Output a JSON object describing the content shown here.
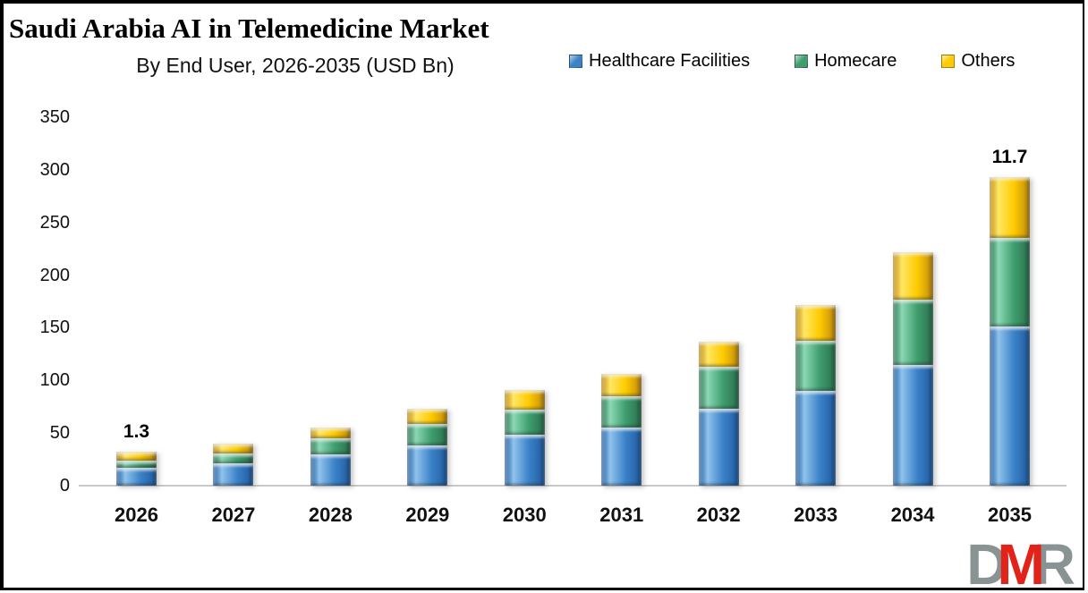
{
  "title": "Saudi Arabia AI in Telemedicine Market",
  "subtitle": "By End User, 2026-2035 (USD Bn)",
  "chart_data": {
    "type": "bar",
    "stacked": true,
    "title": "Saudi Arabia AI in Telemedicine Market",
    "subtitle": "By End User, 2026-2035 (USD Bn)",
    "unit": "USD Bn",
    "categories": [
      "2026",
      "2027",
      "2028",
      "2029",
      "2030",
      "2031",
      "2032",
      "2033",
      "2034",
      "2035"
    ],
    "series": [
      {
        "name": "Healthcare Facilities",
        "color": "#3b82c8",
        "light": "#8fc3ec",
        "dark": "#1f5a9e",
        "values": [
          17,
          21,
          30,
          38,
          48,
          55,
          73,
          90,
          115,
          151
        ]
      },
      {
        "name": "Homecare",
        "color": "#3f9e6e",
        "light": "#8ad8b4",
        "dark": "#2a6e4d",
        "values": [
          7,
          10,
          15,
          21,
          24,
          30,
          40,
          48,
          62,
          84
        ]
      },
      {
        "name": "Others",
        "color": "#ffcb00",
        "light": "#ffe766",
        "dark": "#bf8a10",
        "values": [
          8,
          9,
          10,
          14,
          19,
          21,
          24,
          34,
          45,
          58
        ]
      }
    ],
    "totals": [
      32,
      40,
      55,
      73,
      91,
      106,
      137,
      172,
      222,
      293
    ],
    "annotations": [
      {
        "category": "2026",
        "text": "1.3"
      },
      {
        "category": "2035",
        "text": "11.7"
      }
    ],
    "ylim": [
      0,
      350
    ],
    "yticks": [
      "0",
      "50",
      "100",
      "150",
      "200",
      "250",
      "300",
      "350"
    ],
    "grid": false,
    "legend_position": "top-right"
  },
  "logo": {
    "letters": [
      {
        "char": "D",
        "color": "#8a9394"
      },
      {
        "char": "M",
        "color": "#e2231a"
      },
      {
        "char": "R",
        "color": "#8a9394"
      }
    ]
  }
}
